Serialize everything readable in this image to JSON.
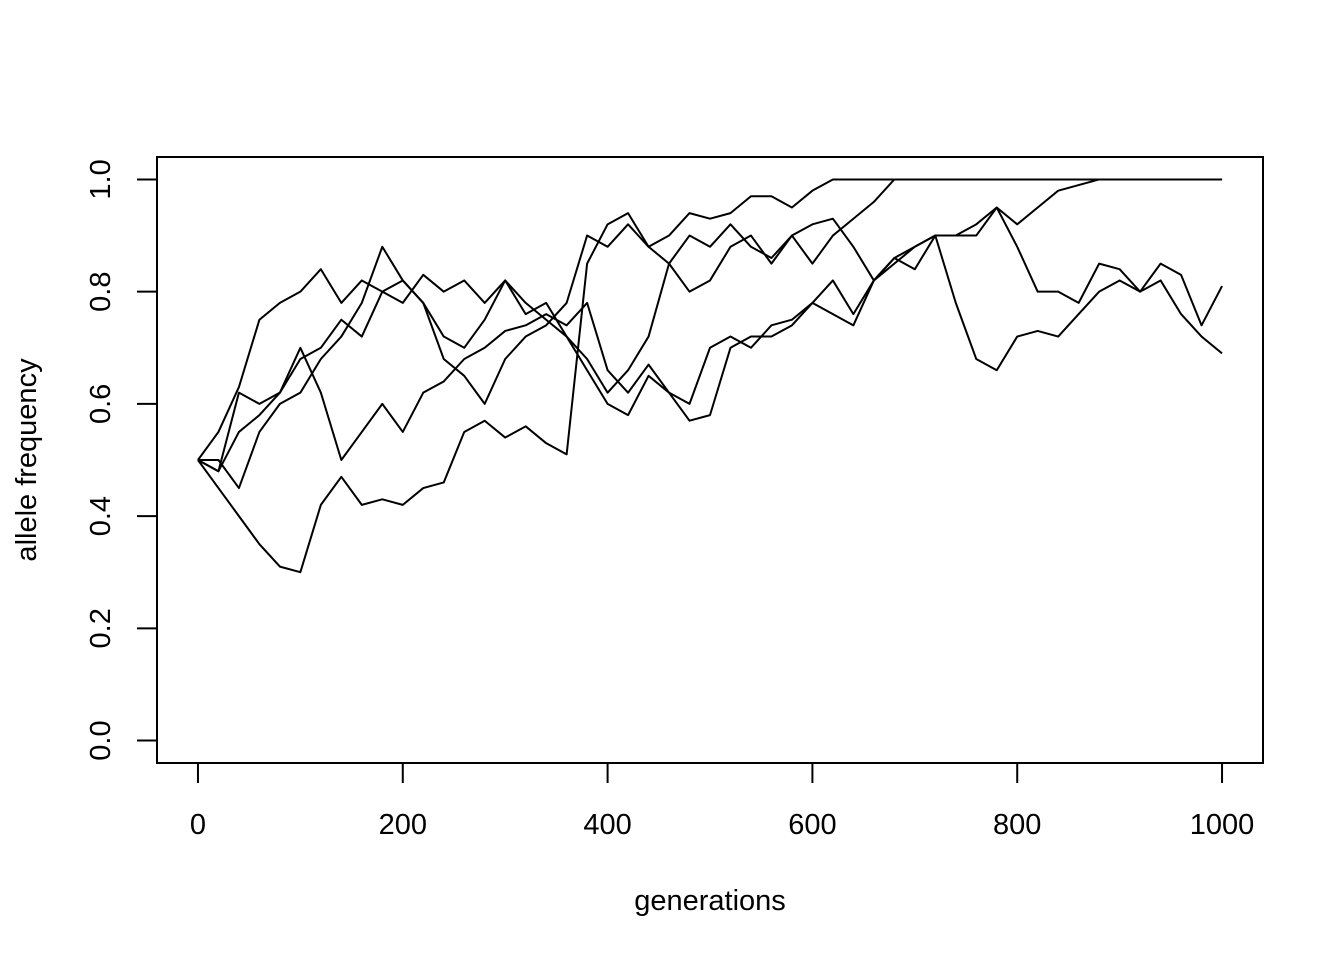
{
  "chart_data": {
    "type": "line",
    "xlabel": "generations",
    "ylabel": "allele frequency",
    "xlim": [
      -40,
      1040
    ],
    "ylim": [
      -0.04,
      1.04
    ],
    "xticks": [
      0,
      200,
      400,
      600,
      800,
      1000
    ],
    "yticks": [
      {
        "value": 0,
        "label": "0.0"
      },
      {
        "value": 0.2,
        "label": "0.2"
      },
      {
        "value": 0.4,
        "label": "0.4"
      },
      {
        "value": 0.6,
        "label": "0.6"
      },
      {
        "value": 0.8,
        "label": "0.8"
      },
      {
        "value": 1,
        "label": "1.0"
      }
    ],
    "x": [
      0,
      20,
      40,
      60,
      80,
      100,
      120,
      140,
      160,
      180,
      200,
      220,
      240,
      260,
      280,
      300,
      320,
      340,
      360,
      380,
      400,
      420,
      440,
      460,
      480,
      500,
      520,
      540,
      560,
      580,
      600,
      620,
      640,
      660,
      680,
      700,
      720,
      740,
      760,
      780,
      800,
      820,
      840,
      860,
      880,
      900,
      920,
      940,
      960,
      980,
      1000
    ],
    "series": [
      {
        "color": "#000000",
        "values": [
          0.5,
          0.45,
          0.4,
          0.35,
          0.31,
          0.3,
          0.42,
          0.47,
          0.42,
          0.43,
          0.42,
          0.45,
          0.46,
          0.55,
          0.57,
          0.54,
          0.56,
          0.53,
          0.51,
          0.85,
          0.92,
          0.94,
          0.88,
          0.9,
          0.94,
          0.93,
          0.94,
          0.97,
          0.97,
          0.95,
          0.98,
          1,
          1,
          1,
          1,
          1,
          1,
          1,
          1,
          1,
          1,
          1,
          1,
          1,
          1,
          1,
          1,
          1,
          1,
          1,
          1
        ]
      },
      {
        "color": "#000000",
        "values": [
          0.5,
          0.55,
          0.63,
          0.75,
          0.78,
          0.8,
          0.84,
          0.78,
          0.82,
          0.8,
          0.82,
          0.78,
          0.72,
          0.7,
          0.75,
          0.82,
          0.78,
          0.75,
          0.72,
          0.68,
          0.62,
          0.66,
          0.72,
          0.85,
          0.9,
          0.88,
          0.92,
          0.88,
          0.86,
          0.9,
          0.85,
          0.9,
          0.93,
          0.96,
          1,
          1,
          1,
          1,
          1,
          1,
          1,
          1,
          1,
          1,
          1,
          1,
          1,
          1,
          1,
          1,
          1
        ]
      },
      {
        "color": "#000000",
        "values": [
          0.5,
          0.48,
          0.55,
          0.58,
          0.62,
          0.68,
          0.7,
          0.75,
          0.72,
          0.8,
          0.78,
          0.83,
          0.8,
          0.82,
          0.78,
          0.82,
          0.76,
          0.78,
          0.72,
          0.66,
          0.6,
          0.58,
          0.65,
          0.62,
          0.6,
          0.7,
          0.72,
          0.7,
          0.74,
          0.75,
          0.78,
          0.82,
          0.76,
          0.82,
          0.86,
          0.88,
          0.9,
          0.9,
          0.9,
          0.95,
          0.92,
          0.95,
          0.98,
          0.99,
          1,
          1,
          1,
          1,
          1,
          1,
          1
        ]
      },
      {
        "color": "#000000",
        "values": [
          0.5,
          0.5,
          0.45,
          0.55,
          0.6,
          0.62,
          0.68,
          0.72,
          0.78,
          0.88,
          0.82,
          0.78,
          0.68,
          0.65,
          0.6,
          0.68,
          0.72,
          0.74,
          0.78,
          0.9,
          0.88,
          0.92,
          0.88,
          0.85,
          0.8,
          0.82,
          0.88,
          0.9,
          0.85,
          0.9,
          0.92,
          0.93,
          0.88,
          0.82,
          0.85,
          0.88,
          0.9,
          0.78,
          0.68,
          0.66,
          0.72,
          0.73,
          0.72,
          0.76,
          0.8,
          0.82,
          0.8,
          0.85,
          0.83,
          0.74,
          0.81
        ]
      },
      {
        "color": "#000000",
        "values": [
          0.5,
          0.48,
          0.62,
          0.6,
          0.62,
          0.7,
          0.62,
          0.5,
          0.55,
          0.6,
          0.55,
          0.62,
          0.64,
          0.68,
          0.7,
          0.73,
          0.74,
          0.76,
          0.74,
          0.78,
          0.66,
          0.62,
          0.67,
          0.62,
          0.57,
          0.58,
          0.7,
          0.72,
          0.72,
          0.74,
          0.78,
          0.76,
          0.74,
          0.82,
          0.86,
          0.84,
          0.9,
          0.9,
          0.92,
          0.95,
          0.88,
          0.8,
          0.8,
          0.78,
          0.85,
          0.84,
          0.8,
          0.82,
          0.76,
          0.72,
          0.69
        ]
      }
    ]
  }
}
